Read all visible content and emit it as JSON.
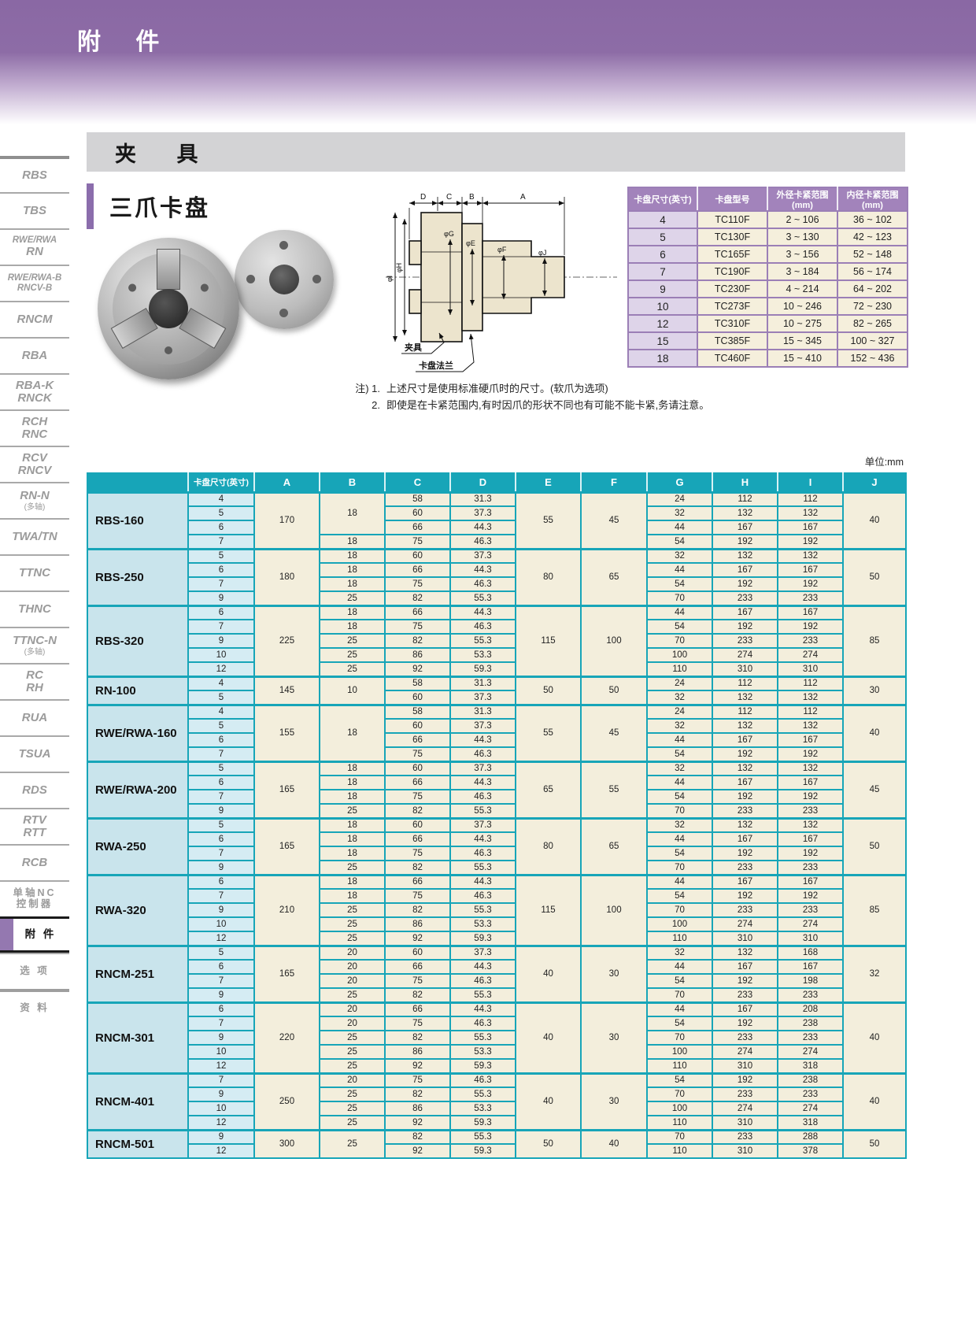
{
  "page": {
    "banner_title": "附 件",
    "section_title": "夹 具",
    "subsection_title": "三爪卡盘",
    "units_note": "单位:mm"
  },
  "sidebar": {
    "items": [
      {
        "lines": [
          "RBS"
        ]
      },
      {
        "lines": [
          "TBS"
        ]
      },
      {
        "lines": [
          "RWE/RWA",
          "RN"
        ],
        "cls": "sm-first"
      },
      {
        "lines": [
          "RWE/RWA-B",
          "RNCV-B"
        ],
        "cls": "sm-all"
      },
      {
        "lines": [
          "RNCM"
        ]
      },
      {
        "lines": [
          "RBA"
        ]
      },
      {
        "lines": [
          "RBA-K",
          "RNCK"
        ]
      },
      {
        "lines": [
          "RCH",
          "RNC"
        ]
      },
      {
        "lines": [
          "RCV",
          "RNCV"
        ]
      },
      {
        "lines": [
          "RN-N",
          "(多轴)"
        ]
      },
      {
        "lines": [
          "TWA/TN"
        ]
      },
      {
        "lines": [
          "TTNC"
        ]
      },
      {
        "lines": [
          "THNC"
        ]
      },
      {
        "lines": [
          "TTNC-N",
          "(多轴)"
        ]
      },
      {
        "lines": [
          "RC",
          "RH"
        ]
      },
      {
        "lines": [
          "RUA"
        ]
      },
      {
        "lines": [
          "TSUA"
        ]
      },
      {
        "lines": [
          "RDS"
        ]
      },
      {
        "lines": [
          "RTV",
          "RTT"
        ]
      },
      {
        "lines": [
          "RCB"
        ]
      },
      {
        "lines": [
          "单轴NC",
          "控制器"
        ],
        "cls": "cjk"
      },
      {
        "lines": [
          "附 件"
        ],
        "cls": "cjk",
        "active": true
      },
      {
        "lines": [
          "选 项"
        ],
        "cls": "cjk"
      },
      {
        "lines": [
          "资 料"
        ],
        "cls": "cjk gap-top"
      }
    ]
  },
  "drawing": {
    "top_dims": [
      "D",
      "C",
      "B",
      "A"
    ],
    "dia_dims": [
      "φI",
      "φH",
      "φG",
      "φE",
      "φF",
      "φJ"
    ],
    "callouts": {
      "fixture": "夹具",
      "flange": "卡盘法兰"
    }
  },
  "spec_table": {
    "headers": [
      "卡盘尺寸(英寸)",
      "卡盘型号",
      "外径卡紧范围(mm)",
      "内径卡紧范围(mm)"
    ],
    "rows": [
      [
        "4",
        "TC110F",
        "2 ~ 106",
        "36 ~ 102"
      ],
      [
        "5",
        "TC130F",
        "3 ~ 130",
        "42 ~ 123"
      ],
      [
        "6",
        "TC165F",
        "3 ~ 156",
        "52 ~ 148"
      ],
      [
        "7",
        "TC190F",
        "3 ~ 184",
        "56 ~ 174"
      ],
      [
        "9",
        "TC230F",
        "4 ~ 214",
        "64 ~ 202"
      ],
      [
        "10",
        "TC273F",
        "10 ~ 246",
        "72 ~ 230"
      ],
      [
        "12",
        "TC310F",
        "10 ~ 275",
        "82 ~ 265"
      ],
      [
        "15",
        "TC385F",
        "15 ~ 345",
        "100 ~ 327"
      ],
      [
        "18",
        "TC460F",
        "15 ~ 410",
        "152 ~ 436"
      ]
    ]
  },
  "notes": {
    "prefix": "注) 1.",
    "line1": "上述尺寸是使用标准硬爪时的尺寸。(软爪为选项)",
    "prefix2": "2.",
    "line2": "即使是在卡紧范围内,有时因爪的形状不同也有可能不能卡紧,务请注意。"
  },
  "dim_table": {
    "headers": [
      "",
      "卡盘尺寸(英寸)",
      "A",
      "B",
      "C",
      "D",
      "E",
      "F",
      "G",
      "H",
      "I",
      "J"
    ],
    "groups": [
      {
        "name": "RBS-160",
        "a": "170",
        "e": "55",
        "f": "45",
        "j": "40",
        "b_runs": [
          [
            "18",
            3
          ],
          [
            "18",
            1
          ]
        ],
        "rows": [
          [
            "4",
            "58",
            "31.3",
            "24",
            "112",
            "112"
          ],
          [
            "5",
            "60",
            "37.3",
            "32",
            "132",
            "132"
          ],
          [
            "6",
            "66",
            "44.3",
            "44",
            "167",
            "167"
          ],
          [
            "7",
            "75",
            "46.3",
            "54",
            "192",
            "192"
          ]
        ]
      },
      {
        "name": "RBS-250",
        "a": "180",
        "e": "80",
        "f": "65",
        "j": "50",
        "b_runs": [
          [
            "18",
            1
          ],
          [
            "18",
            1
          ],
          [
            "18",
            1
          ],
          [
            "25",
            1
          ]
        ],
        "rows": [
          [
            "5",
            "60",
            "37.3",
            "32",
            "132",
            "132"
          ],
          [
            "6",
            "66",
            "44.3",
            "44",
            "167",
            "167"
          ],
          [
            "7",
            "75",
            "46.3",
            "54",
            "192",
            "192"
          ],
          [
            "9",
            "82",
            "55.3",
            "70",
            "233",
            "233"
          ]
        ]
      },
      {
        "name": "RBS-320",
        "a": "225",
        "e": "115",
        "f": "100",
        "j": "85",
        "b_runs": [
          [
            "18",
            1
          ],
          [
            "18",
            1
          ],
          [
            "25",
            1
          ],
          [
            "25",
            1
          ],
          [
            "25",
            1
          ]
        ],
        "rows": [
          [
            "6",
            "66",
            "44.3",
            "44",
            "167",
            "167"
          ],
          [
            "7",
            "75",
            "46.3",
            "54",
            "192",
            "192"
          ],
          [
            "9",
            "82",
            "55.3",
            "70",
            "233",
            "233"
          ],
          [
            "10",
            "86",
            "53.3",
            "100",
            "274",
            "274"
          ],
          [
            "12",
            "92",
            "59.3",
            "110",
            "310",
            "310"
          ]
        ]
      },
      {
        "name": "RN-100",
        "a": "145",
        "e": "50",
        "f": "50",
        "j": "30",
        "b_runs": [
          [
            "10",
            2
          ]
        ],
        "rows": [
          [
            "4",
            "58",
            "31.3",
            "24",
            "112",
            "112"
          ],
          [
            "5",
            "60",
            "37.3",
            "32",
            "132",
            "132"
          ]
        ]
      },
      {
        "name": "RWE/RWA-160",
        "a": "155",
        "e": "55",
        "f": "45",
        "j": "40",
        "b_runs": [
          [
            "18",
            4
          ]
        ],
        "rows": [
          [
            "4",
            "58",
            "31.3",
            "24",
            "112",
            "112"
          ],
          [
            "5",
            "60",
            "37.3",
            "32",
            "132",
            "132"
          ],
          [
            "6",
            "66",
            "44.3",
            "44",
            "167",
            "167"
          ],
          [
            "7",
            "75",
            "46.3",
            "54",
            "192",
            "192"
          ]
        ]
      },
      {
        "name": "RWE/RWA-200",
        "a": "165",
        "e": "65",
        "f": "55",
        "j": "45",
        "b_runs": [
          [
            "18",
            1
          ],
          [
            "18",
            1
          ],
          [
            "18",
            1
          ],
          [
            "25",
            1
          ]
        ],
        "rows": [
          [
            "5",
            "60",
            "37.3",
            "32",
            "132",
            "132"
          ],
          [
            "6",
            "66",
            "44.3",
            "44",
            "167",
            "167"
          ],
          [
            "7",
            "75",
            "46.3",
            "54",
            "192",
            "192"
          ],
          [
            "9",
            "82",
            "55.3",
            "70",
            "233",
            "233"
          ]
        ]
      },
      {
        "name": "RWA-250",
        "a": "165",
        "e": "80",
        "f": "65",
        "j": "50",
        "b_runs": [
          [
            "18",
            1
          ],
          [
            "18",
            1
          ],
          [
            "18",
            1
          ],
          [
            "25",
            1
          ]
        ],
        "rows": [
          [
            "5",
            "60",
            "37.3",
            "32",
            "132",
            "132"
          ],
          [
            "6",
            "66",
            "44.3",
            "44",
            "167",
            "167"
          ],
          [
            "7",
            "75",
            "46.3",
            "54",
            "192",
            "192"
          ],
          [
            "9",
            "82",
            "55.3",
            "70",
            "233",
            "233"
          ]
        ]
      },
      {
        "name": "RWA-320",
        "a": "210",
        "e": "115",
        "f": "100",
        "j": "85",
        "b_runs": [
          [
            "18",
            1
          ],
          [
            "18",
            1
          ],
          [
            "25",
            1
          ],
          [
            "25",
            1
          ],
          [
            "25",
            1
          ]
        ],
        "rows": [
          [
            "6",
            "66",
            "44.3",
            "44",
            "167",
            "167"
          ],
          [
            "7",
            "75",
            "46.3",
            "54",
            "192",
            "192"
          ],
          [
            "9",
            "82",
            "55.3",
            "70",
            "233",
            "233"
          ],
          [
            "10",
            "86",
            "53.3",
            "100",
            "274",
            "274"
          ],
          [
            "12",
            "92",
            "59.3",
            "110",
            "310",
            "310"
          ]
        ]
      },
      {
        "name": "RNCM-251",
        "a": "165",
        "e": "40",
        "f": "30",
        "j": "32",
        "b_runs": [
          [
            "20",
            1
          ],
          [
            "20",
            1
          ],
          [
            "20",
            1
          ],
          [
            "25",
            1
          ]
        ],
        "rows": [
          [
            "5",
            "60",
            "37.3",
            "32",
            "132",
            "168"
          ],
          [
            "6",
            "66",
            "44.3",
            "44",
            "167",
            "167"
          ],
          [
            "7",
            "75",
            "46.3",
            "54",
            "192",
            "198"
          ],
          [
            "9",
            "82",
            "55.3",
            "70",
            "233",
            "233"
          ]
        ]
      },
      {
        "name": "RNCM-301",
        "a": "220",
        "e": "40",
        "f": "30",
        "j": "40",
        "b_runs": [
          [
            "20",
            1
          ],
          [
            "20",
            1
          ],
          [
            "25",
            1
          ],
          [
            "25",
            1
          ],
          [
            "25",
            1
          ]
        ],
        "rows": [
          [
            "6",
            "66",
            "44.3",
            "44",
            "167",
            "208"
          ],
          [
            "7",
            "75",
            "46.3",
            "54",
            "192",
            "238"
          ],
          [
            "9",
            "82",
            "55.3",
            "70",
            "233",
            "233"
          ],
          [
            "10",
            "86",
            "53.3",
            "100",
            "274",
            "274"
          ],
          [
            "12",
            "92",
            "59.3",
            "110",
            "310",
            "318"
          ]
        ]
      },
      {
        "name": "RNCM-401",
        "a": "250",
        "e": "40",
        "f": "30",
        "j": "40",
        "b_runs": [
          [
            "20",
            1
          ],
          [
            "25",
            1
          ],
          [
            "25",
            1
          ],
          [
            "25",
            1
          ]
        ],
        "rows": [
          [
            "7",
            "75",
            "46.3",
            "54",
            "192",
            "238"
          ],
          [
            "9",
            "82",
            "55.3",
            "70",
            "233",
            "233"
          ],
          [
            "10",
            "86",
            "53.3",
            "100",
            "274",
            "274"
          ],
          [
            "12",
            "92",
            "59.3",
            "110",
            "310",
            "318"
          ]
        ]
      },
      {
        "name": "RNCM-501",
        "a": "300",
        "e": "50",
        "f": "40",
        "j": "50",
        "b_runs": [
          [
            "25",
            2
          ]
        ],
        "rows": [
          [
            "9",
            "82",
            "55.3",
            "70",
            "233",
            "288"
          ],
          [
            "12",
            "92",
            "59.3",
            "110",
            "310",
            "378"
          ]
        ]
      }
    ]
  }
}
